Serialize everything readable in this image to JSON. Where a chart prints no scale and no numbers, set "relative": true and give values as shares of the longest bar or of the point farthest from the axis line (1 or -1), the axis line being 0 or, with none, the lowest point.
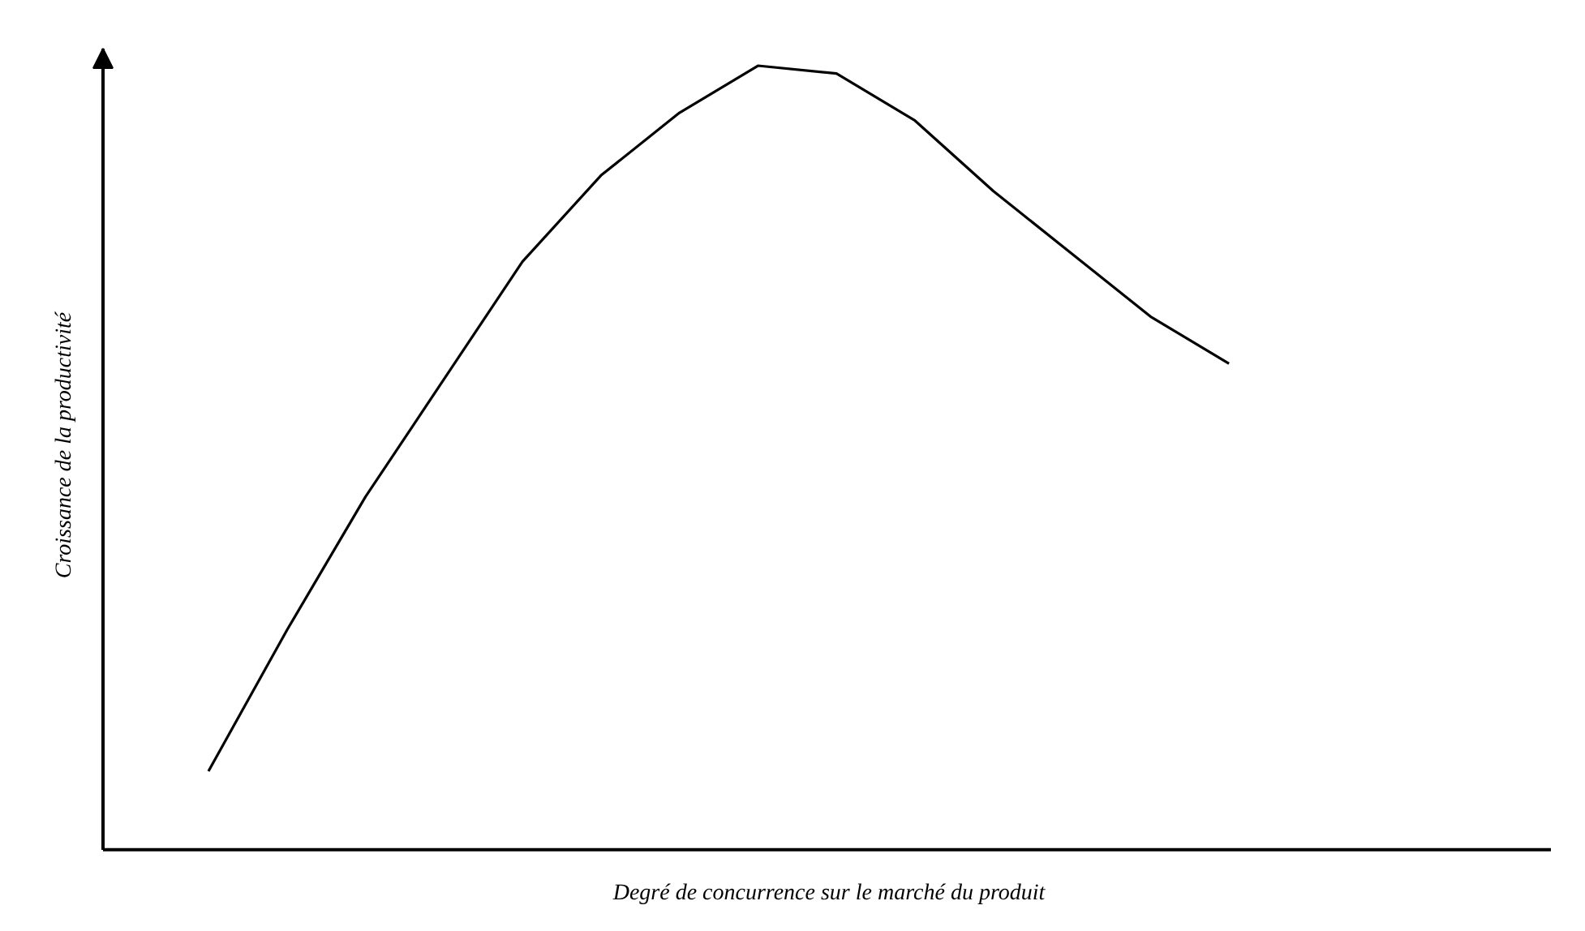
{
  "chart_data": {
    "type": "line",
    "relative": true,
    "xlabel": "Degré de concurrence sur le marché du produit",
    "ylabel": "Croissance de la productivité",
    "categories": [
      null,
      null,
      null,
      null,
      null,
      null,
      null,
      null,
      null,
      null,
      null,
      null,
      null,
      null
    ],
    "values": [
      0.1,
      0.28,
      0.45,
      0.6,
      0.75,
      0.86,
      0.94,
      1.0,
      0.99,
      0.93,
      0.84,
      0.76,
      0.68,
      0.62
    ],
    "color": "#000000"
  }
}
